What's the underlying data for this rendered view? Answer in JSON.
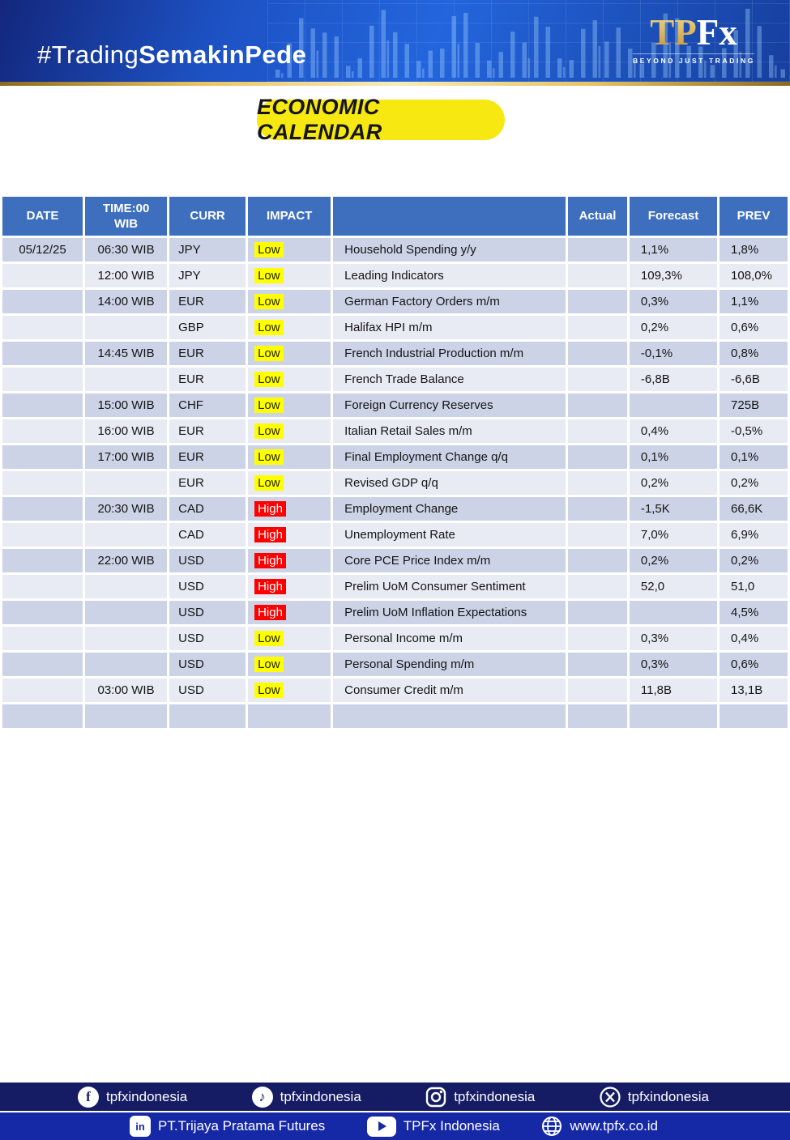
{
  "banner": {
    "hashtag_regular": "#Trading",
    "hashtag_bold": "SemakinPede",
    "logo_tp": "TP",
    "logo_fx": "Fx",
    "logo_tagline": "BEYOND JUST TRADING"
  },
  "title_badge": "ECONOMIC CALENDAR",
  "table": {
    "columns": [
      "DATE",
      "TIME:00 WIB",
      "CURR",
      "IMPACT",
      "",
      "Actual",
      "Forecast",
      "PREV"
    ],
    "rows": [
      {
        "date": "05/12/25",
        "time": "06:30 WIB",
        "curr": "JPY",
        "impact": "Low",
        "event": "Household Spending y/y",
        "actual": "",
        "forecast": "1,1%",
        "prev": "1,8%"
      },
      {
        "date": "",
        "time": "12:00 WIB",
        "curr": "JPY",
        "impact": "Low",
        "event": "Leading Indicators",
        "actual": "",
        "forecast": "109,3%",
        "prev": "108,0%"
      },
      {
        "date": "",
        "time": "14:00 WIB",
        "curr": "EUR",
        "impact": "Low",
        "event": "German Factory Orders m/m",
        "actual": "",
        "forecast": "0,3%",
        "prev": "1,1%"
      },
      {
        "date": "",
        "time": "",
        "curr": "GBP",
        "impact": "Low",
        "event": "Halifax HPI m/m",
        "actual": "",
        "forecast": "0,2%",
        "prev": "0,6%"
      },
      {
        "date": "",
        "time": "14:45 WIB",
        "curr": "EUR",
        "impact": "Low",
        "event": "French Industrial Production m/m",
        "actual": "",
        "forecast": "-0,1%",
        "prev": "0,8%"
      },
      {
        "date": "",
        "time": "",
        "curr": "EUR",
        "impact": "Low",
        "event": "French Trade Balance",
        "actual": "",
        "forecast": "-6,8B",
        "prev": "-6,6B"
      },
      {
        "date": "",
        "time": "15:00 WIB",
        "curr": "CHF",
        "impact": "Low",
        "event": "Foreign Currency Reserves",
        "actual": "",
        "forecast": "",
        "prev": "725B"
      },
      {
        "date": "",
        "time": "16:00 WIB",
        "curr": "EUR",
        "impact": "Low",
        "event": "Italian Retail Sales m/m",
        "actual": "",
        "forecast": "0,4%",
        "prev": "-0,5%"
      },
      {
        "date": "",
        "time": "17:00 WIB",
        "curr": "EUR",
        "impact": "Low",
        "event": "Final Employment Change q/q",
        "actual": "",
        "forecast": "0,1%",
        "prev": "0,1%"
      },
      {
        "date": "",
        "time": "",
        "curr": "EUR",
        "impact": "Low",
        "event": "Revised GDP q/q",
        "actual": "",
        "forecast": "0,2%",
        "prev": "0,2%"
      },
      {
        "date": "",
        "time": "20:30 WIB",
        "curr": "CAD",
        "impact": "High",
        "event": "Employment Change",
        "actual": "",
        "forecast": "-1,5K",
        "prev": "66,6K"
      },
      {
        "date": "",
        "time": "",
        "curr": "CAD",
        "impact": "High",
        "event": "Unemployment Rate",
        "actual": "",
        "forecast": "7,0%",
        "prev": "6,9%"
      },
      {
        "date": "",
        "time": "22:00 WIB",
        "curr": "USD",
        "impact": "High",
        "event": "Core PCE Price Index m/m",
        "actual": "",
        "forecast": "0,2%",
        "prev": "0,2%"
      },
      {
        "date": "",
        "time": "",
        "curr": "USD",
        "impact": "High",
        "event": "Prelim UoM Consumer Sentiment",
        "actual": "",
        "forecast": "52,0",
        "prev": "51,0"
      },
      {
        "date": "",
        "time": "",
        "curr": "USD",
        "impact": "High",
        "event": "Prelim UoM Inflation Expectations",
        "actual": "",
        "forecast": "",
        "prev": "4,5%"
      },
      {
        "date": "",
        "time": "",
        "curr": "USD",
        "impact": "Low",
        "event": "Personal Income m/m",
        "actual": "",
        "forecast": "0,3%",
        "prev": "0,4%"
      },
      {
        "date": "",
        "time": "",
        "curr": "USD",
        "impact": "Low",
        "event": "Personal Spending m/m",
        "actual": "",
        "forecast": "0,3%",
        "prev": "0,6%"
      },
      {
        "date": "",
        "time": "03:00 WIB",
        "curr": "USD",
        "impact": "Low",
        "event": "Consumer Credit m/m",
        "actual": "",
        "forecast": "11,8B",
        "prev": "13,1B"
      },
      {
        "date": "",
        "time": "",
        "curr": "",
        "impact": "",
        "event": "",
        "actual": "",
        "forecast": "",
        "prev": ""
      }
    ]
  },
  "footer": {
    "social": [
      {
        "network": "facebook",
        "handle": "tpfxindonesia"
      },
      {
        "network": "tiktok",
        "handle": "tpfxindonesia"
      },
      {
        "network": "instagram",
        "handle": "tpfxindonesia"
      },
      {
        "network": "x",
        "handle": "tpfxindonesia"
      }
    ],
    "info": [
      {
        "icon": "linkedin",
        "label": "PT.Trijaya Pratama Futures"
      },
      {
        "icon": "youtube",
        "label": "TPFx Indonesia"
      },
      {
        "icon": "globe",
        "label": "www.tpfx.co.id"
      }
    ]
  },
  "colors": {
    "table_header_blue": "#3e6fbe",
    "row_dark": "#cdd3e7",
    "row_light": "#e9ebf4",
    "impact_low_bg": "#ffff00",
    "impact_high_bg": "#ff0000",
    "badge_yellow": "#f8e812",
    "footer_dark_navy": "#161c63",
    "footer_blue": "#1528a6",
    "gold": "#e7c264"
  }
}
